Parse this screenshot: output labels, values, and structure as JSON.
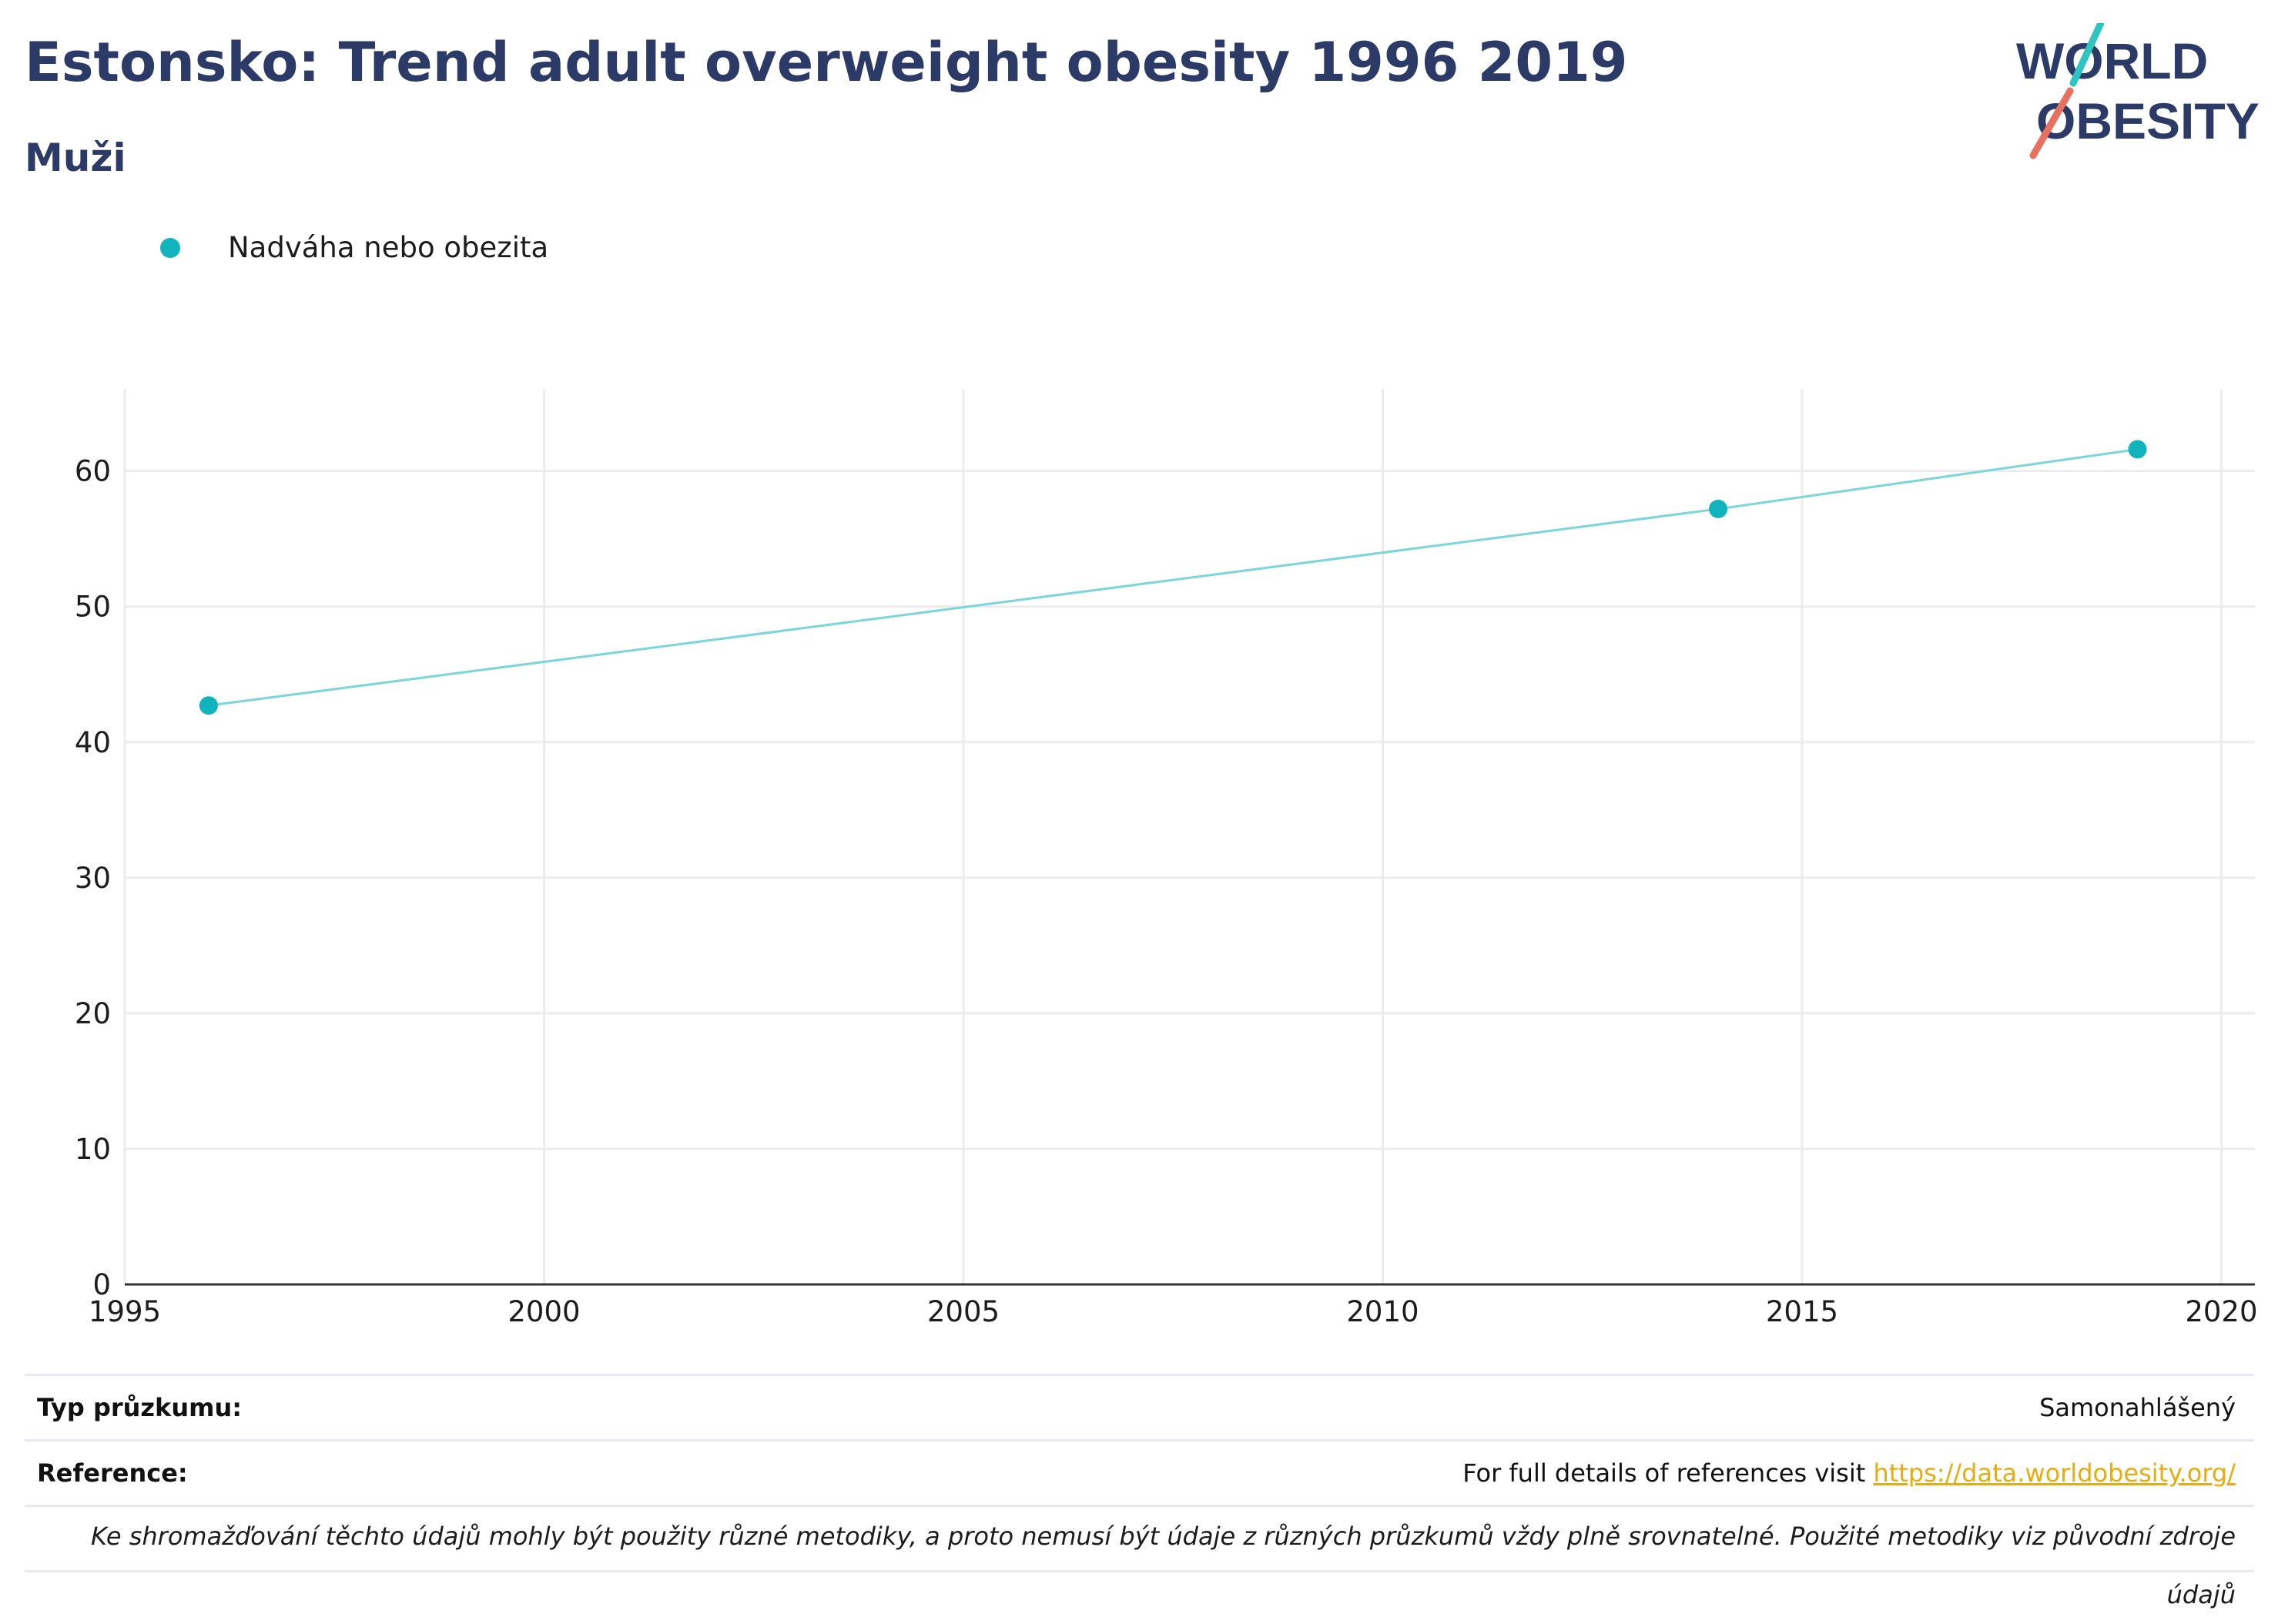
{
  "header": {
    "title": "Estonsko: Trend adult overweight obesity 1996 2019",
    "subtitle": "Muži"
  },
  "logo": {
    "line1": "WORLD",
    "line2": "OBESITY"
  },
  "colors": {
    "title": "#2b3a67",
    "series": "#11b3bd",
    "line": "#7ad6dc",
    "link": "#e6ad12",
    "logo_teal": "#2ec4c0",
    "logo_coral": "#e8705e"
  },
  "chart_data": {
    "type": "line",
    "series": [
      {
        "name": "Nadváha nebo obezita",
        "x": [
          1996,
          2014,
          2019
        ],
        "y": [
          42.7,
          57.2,
          61.6
        ]
      }
    ],
    "xlim": [
      1995,
      2020.4
    ],
    "ylim": [
      0,
      66
    ],
    "xticks": [
      1995,
      2000,
      2005,
      2010,
      2015,
      2020
    ],
    "yticks": [
      0,
      10,
      20,
      30,
      40,
      50,
      60
    ],
    "grid": true,
    "legend": "top-left"
  },
  "info": {
    "survey_label": "Typ průzkumu:",
    "survey_value": "Samonahlášený",
    "reference_label": "Reference:",
    "reference_text": "For full details of references visit ",
    "reference_link": "https://data.worldobesity.org/",
    "note": "Ke shromažďování těchto údajů mohly být použity různé metodiky, a proto nemusí být údaje z různých průzkumů vždy plně srovnatelné. Použité metodiky viz původní zdroje údajů"
  }
}
